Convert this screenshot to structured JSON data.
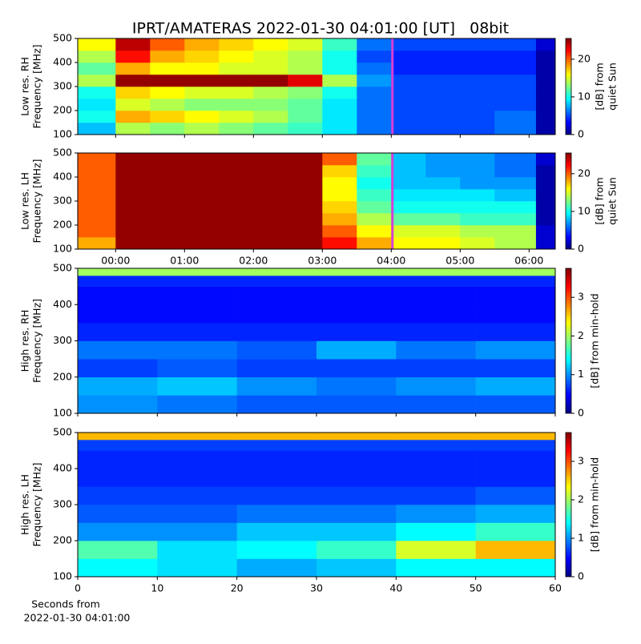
{
  "title": "IPRT/AMATERAS 2022-01-30 04:01:00 [UT]   08bit",
  "xlabel": [
    "Seconds from",
    "2022-01-30 04:01:00"
  ],
  "chart_data": [
    {
      "type": "heatmap",
      "ylabel": [
        "Low res. RH",
        "Frequency [MHz]"
      ],
      "colorbar_label": [
        "[dB] from",
        "quiet Sun"
      ],
      "colormap": "jet",
      "xlim": [
        -0.55,
        6.38
      ],
      "xticks": [
        {
          "value": 0,
          "label": "00:00"
        },
        {
          "value": 1,
          "label": "01:00"
        },
        {
          "value": 2,
          "label": "02:00"
        },
        {
          "value": 3,
          "label": "03:00"
        },
        {
          "value": 4,
          "label": "04:00"
        },
        {
          "value": 5,
          "label": "05:00"
        },
        {
          "value": 6,
          "label": "06:00"
        }
      ],
      "show_xticklabels": false,
      "ylim": [
        100,
        500
      ],
      "yticks": [
        100,
        200,
        300,
        400,
        500
      ],
      "clim": [
        0,
        25.5
      ],
      "cticks": [
        0,
        10,
        20
      ],
      "marker_x": 4.0167,
      "marker_color": "#d63fd6",
      "time_bins": [
        -0.55,
        0,
        0.5,
        1,
        1.5,
        2,
        2.5,
        3,
        3.5,
        4,
        4.5,
        5,
        5.5,
        6.1,
        6.38
      ],
      "freq_bins": [
        100,
        150,
        200,
        250,
        300,
        350,
        400,
        450,
        500
      ],
      "values": [
        [
          8,
          14,
          13,
          14,
          13,
          12,
          11,
          9,
          6,
          5,
          5,
          5,
          6,
          1
        ],
        [
          10,
          18,
          17,
          16,
          15,
          14,
          12,
          9,
          6,
          5,
          5,
          5,
          6,
          1
        ],
        [
          9,
          15,
          14,
          13,
          13,
          13,
          12,
          9,
          6,
          5,
          5,
          5,
          5,
          1
        ],
        [
          10,
          17,
          16,
          15,
          15,
          14,
          13,
          10,
          6,
          5,
          5,
          5,
          5,
          1
        ],
        [
          14,
          25,
          25,
          25,
          25,
          25,
          23,
          14,
          7,
          5,
          5,
          5,
          5,
          1
        ],
        [
          12,
          18,
          16,
          16,
          15,
          15,
          14,
          10,
          6,
          4,
          4,
          4,
          4,
          1
        ],
        [
          14,
          22,
          18,
          17,
          16,
          15,
          14,
          10,
          5,
          4,
          4,
          4,
          4,
          1
        ],
        [
          16,
          24,
          20,
          18,
          17,
          16,
          15,
          11,
          6,
          5,
          5,
          5,
          5,
          2
        ]
      ]
    },
    {
      "type": "heatmap",
      "ylabel": [
        "Low res. LH",
        "Frequency [MHz]"
      ],
      "colorbar_label": [
        "[dB] from",
        "quiet Sun"
      ],
      "colormap": "jet",
      "xlim": [
        -0.55,
        6.38
      ],
      "xticks": [
        {
          "value": 0,
          "label": "00:00"
        },
        {
          "value": 1,
          "label": "01:00"
        },
        {
          "value": 2,
          "label": "02:00"
        },
        {
          "value": 3,
          "label": "03:00"
        },
        {
          "value": 4,
          "label": "04:00"
        },
        {
          "value": 5,
          "label": "05:00"
        },
        {
          "value": 6,
          "label": "06:00"
        }
      ],
      "show_xticklabels": true,
      "ylim": [
        100,
        500
      ],
      "yticks": [
        100,
        200,
        300,
        400,
        500
      ],
      "clim": [
        0,
        25.5
      ],
      "cticks": [
        0,
        10,
        20
      ],
      "marker_x": 4.0167,
      "marker_color": "#d63fd6",
      "time_bins": [
        -0.55,
        0,
        0.5,
        1,
        1.5,
        2,
        2.5,
        3,
        3.5,
        4,
        4.5,
        5,
        5.5,
        6.1,
        6.38
      ],
      "freq_bins": [
        100,
        150,
        200,
        250,
        300,
        350,
        400,
        450,
        500
      ],
      "values": [
        [
          18,
          25,
          25,
          25,
          25,
          25,
          25,
          22,
          18,
          16,
          16,
          15,
          14,
          2
        ],
        [
          20,
          25,
          25,
          25,
          25,
          25,
          25,
          20,
          16,
          15,
          15,
          14,
          14,
          2
        ],
        [
          20,
          25,
          25,
          25,
          25,
          25,
          25,
          18,
          14,
          12,
          12,
          11,
          11,
          1
        ],
        [
          20,
          25,
          25,
          25,
          25,
          25,
          25,
          17,
          12,
          10,
          10,
          10,
          10,
          1
        ],
        [
          20,
          25,
          25,
          25,
          25,
          25,
          25,
          16,
          11,
          9,
          9,
          9,
          8,
          1
        ],
        [
          20,
          25,
          25,
          25,
          25,
          25,
          25,
          16,
          10,
          8,
          8,
          7,
          7,
          1
        ],
        [
          20,
          25,
          25,
          25,
          25,
          25,
          25,
          17,
          11,
          8,
          7,
          7,
          6,
          1
        ],
        [
          20,
          25,
          25,
          25,
          25,
          25,
          25,
          20,
          12,
          8,
          7,
          7,
          6,
          2
        ]
      ]
    },
    {
      "type": "heatmap",
      "ylabel": [
        "High res. RH",
        "Frequency [MHz]"
      ],
      "colorbar_label": [
        "[dB] from min-hold"
      ],
      "colormap": "jet",
      "xlim": [
        0,
        60
      ],
      "xticks": [
        0,
        10,
        20,
        30,
        40,
        50,
        60
      ],
      "show_xticklabels": false,
      "ylim": [
        100,
        500
      ],
      "yticks": [
        100,
        200,
        300,
        400,
        500
      ],
      "clim": [
        0,
        3.75
      ],
      "cticks": [
        0,
        1,
        2,
        3
      ],
      "time_bins": [
        0,
        10,
        20,
        30,
        40,
        50,
        60
      ],
      "freq_bins": [
        100,
        150,
        200,
        250,
        300,
        350,
        400,
        450,
        480,
        500
      ],
      "values": [
        [
          1.0,
          0.9,
          0.8,
          0.8,
          0.8,
          0.8
        ],
        [
          1.1,
          1.2,
          1.0,
          0.9,
          1.0,
          1.1
        ],
        [
          0.7,
          0.8,
          0.7,
          0.7,
          0.7,
          0.7
        ],
        [
          0.9,
          0.9,
          0.8,
          1.1,
          0.9,
          1.0
        ],
        [
          0.6,
          0.6,
          0.6,
          0.6,
          0.6,
          0.6
        ],
        [
          0.5,
          0.5,
          0.5,
          0.5,
          0.5,
          0.5
        ],
        [
          0.5,
          0.5,
          0.5,
          0.5,
          0.5,
          0.5
        ],
        [
          0.6,
          0.6,
          0.6,
          0.6,
          0.6,
          0.6
        ],
        [
          2.0,
          2.0,
          2.0,
          2.0,
          2.0,
          2.0
        ]
      ]
    },
    {
      "type": "heatmap",
      "ylabel": [
        "High res. LH",
        "Frequency [MHz]"
      ],
      "colorbar_label": [
        "[dB] from min-hold"
      ],
      "colormap": "jet",
      "xlim": [
        0,
        60
      ],
      "xticks": [
        0,
        10,
        20,
        30,
        40,
        50,
        60
      ],
      "show_xticklabels": true,
      "ylim": [
        100,
        500
      ],
      "yticks": [
        100,
        200,
        300,
        400,
        500
      ],
      "clim": [
        0,
        3.75
      ],
      "cticks": [
        0,
        1,
        2,
        3
      ],
      "time_bins": [
        0,
        10,
        20,
        30,
        40,
        50,
        60
      ],
      "freq_bins": [
        100,
        150,
        200,
        250,
        300,
        350,
        400,
        450,
        480,
        500
      ],
      "values": [
        [
          1.4,
          1.3,
          1.1,
          1.2,
          1.4,
          1.4
        ],
        [
          1.7,
          1.3,
          1.4,
          1.6,
          2.2,
          2.6
        ],
        [
          1.0,
          1.0,
          1.2,
          1.2,
          1.4,
          1.6
        ],
        [
          0.8,
          0.8,
          0.9,
          0.9,
          1.0,
          1.1
        ],
        [
          0.7,
          0.7,
          0.7,
          0.7,
          0.7,
          0.8
        ],
        [
          0.6,
          0.6,
          0.6,
          0.6,
          0.6,
          0.6
        ],
        [
          0.6,
          0.6,
          0.6,
          0.6,
          0.6,
          0.6
        ],
        [
          0.7,
          0.7,
          0.7,
          0.7,
          0.7,
          0.7
        ],
        [
          2.6,
          2.6,
          2.6,
          2.6,
          2.6,
          2.6
        ]
      ]
    }
  ]
}
